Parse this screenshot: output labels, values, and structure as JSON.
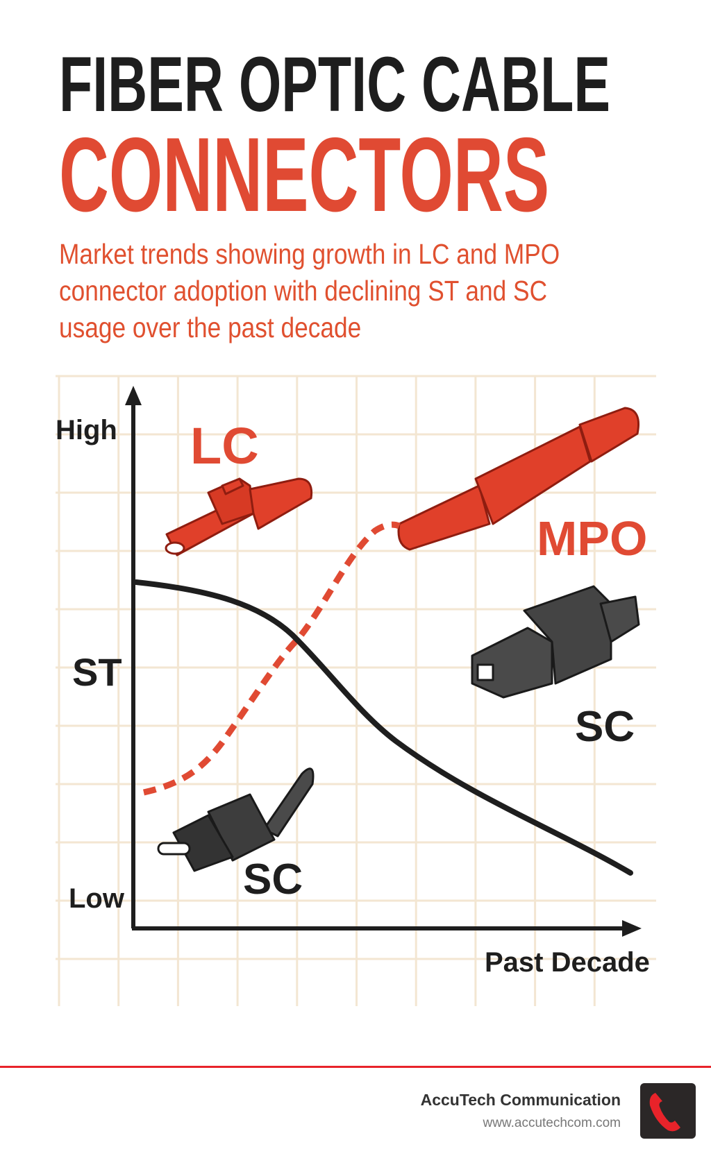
{
  "header": {
    "title_line1": "FIBER OPTIC CABLE",
    "title_line2": "CONNECTORS",
    "subtitle_lines": [
      "Market trends showing growth in LC and MPO",
      "connector adoption with declining ST and SC",
      "usage over the past decade"
    ]
  },
  "colors": {
    "accent": "#e04a33",
    "dark": "#1e1e1e",
    "grid": "#f3e6d2",
    "footer_line": "#e8232a"
  },
  "chart_data": {
    "type": "line",
    "title": "",
    "xlabel": "Past Decade",
    "ylabel": "",
    "y_tick_labels": [
      "High",
      "ST",
      "Low"
    ],
    "grid": true,
    "series": [
      {
        "style": "dashed",
        "color": "#e04a33",
        "trend": "rising from low to high (S-curve)"
      },
      {
        "style": "solid",
        "color": "#1e1e1e",
        "trend": "declining from high to low"
      }
    ],
    "annotations": [
      "LC",
      "MPO",
      "SC",
      "SC"
    ]
  },
  "footer": {
    "company": "AccuTech Communication",
    "url": "www.accutechcom.com",
    "icon": "phone-icon"
  }
}
